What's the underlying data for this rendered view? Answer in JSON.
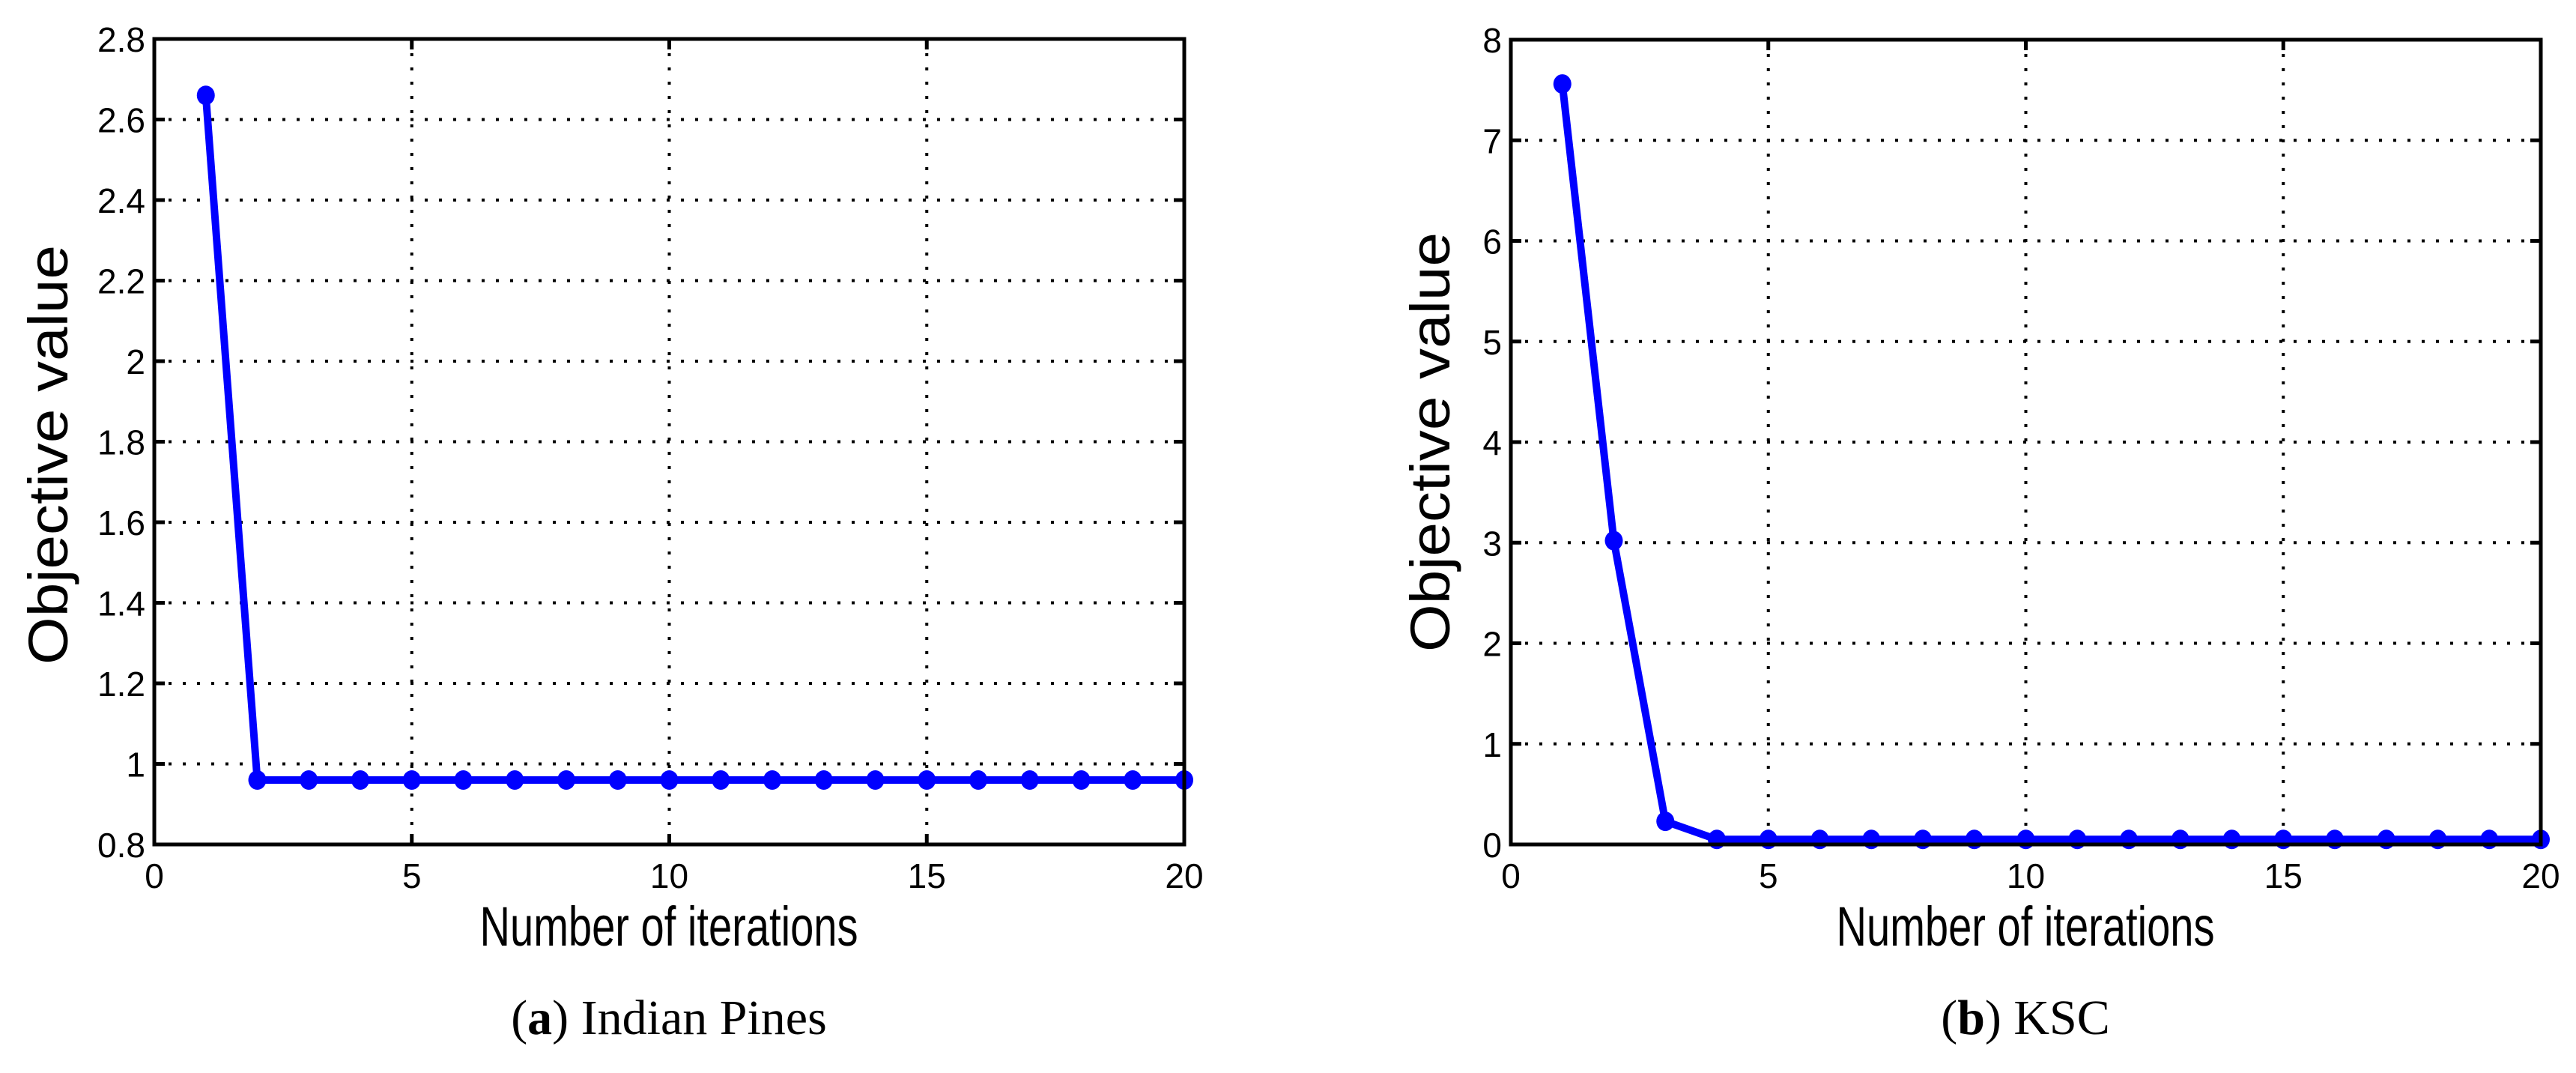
{
  "figure": {
    "panels": [
      {
        "id": "a",
        "caption_letter": "a",
        "caption_text": "Indian Pines",
        "xlabel": "Number of iterations",
        "ylabel": "Objective value"
      },
      {
        "id": "b",
        "caption_letter": "b",
        "caption_text": "KSC",
        "xlabel": "Number of iterations",
        "ylabel": "Objective value"
      }
    ]
  },
  "colors": {
    "series": "#0000ff",
    "axis": "#000000",
    "grid": "#000000",
    "background": "#ffffff"
  },
  "chart_data": [
    {
      "type": "line",
      "title": "(a) Indian Pines",
      "xlabel": "Number of iterations",
      "ylabel": "Objective value",
      "xlim": [
        0,
        20
      ],
      "ylim": [
        0.8,
        2.8
      ],
      "xticks": [
        0,
        5,
        10,
        15,
        20
      ],
      "yticks": [
        0.8,
        1,
        1.2,
        1.4,
        1.6,
        1.8,
        2,
        2.2,
        2.4,
        2.6,
        2.8
      ],
      "ytick_labels": [
        "0.8",
        "1",
        "1.2",
        "1.4",
        "1.6",
        "1.8",
        "2",
        "2.2",
        "2.4",
        "2.6",
        "2.8"
      ],
      "grid": true,
      "legend": null,
      "marker": "filled-circle",
      "x": [
        1,
        2,
        3,
        4,
        5,
        6,
        7,
        8,
        9,
        10,
        11,
        12,
        13,
        14,
        15,
        16,
        17,
        18,
        19,
        20
      ],
      "series": [
        {
          "name": "Objective value",
          "color": "#0000ff",
          "values": [
            2.66,
            0.96,
            0.96,
            0.96,
            0.96,
            0.96,
            0.96,
            0.96,
            0.96,
            0.96,
            0.96,
            0.96,
            0.96,
            0.96,
            0.96,
            0.96,
            0.96,
            0.96,
            0.96,
            0.96
          ]
        }
      ]
    },
    {
      "type": "line",
      "title": "(b) KSC",
      "xlabel": "Number of iterations",
      "ylabel": "Objective value",
      "xlim": [
        0,
        20
      ],
      "ylim": [
        0,
        8
      ],
      "xticks": [
        0,
        5,
        10,
        15,
        20
      ],
      "yticks": [
        0,
        1,
        2,
        3,
        4,
        5,
        6,
        7,
        8
      ],
      "ytick_labels": [
        "0",
        "1",
        "2",
        "3",
        "4",
        "5",
        "6",
        "7",
        "8"
      ],
      "grid": true,
      "legend": null,
      "marker": "filled-circle",
      "x": [
        1,
        2,
        3,
        4,
        5,
        6,
        7,
        8,
        9,
        10,
        11,
        12,
        13,
        14,
        15,
        16,
        17,
        18,
        19,
        20
      ],
      "series": [
        {
          "name": "Objective value",
          "color": "#0000ff",
          "values": [
            7.56,
            3.02,
            0.23,
            0.05,
            0.05,
            0.05,
            0.05,
            0.05,
            0.05,
            0.05,
            0.05,
            0.05,
            0.05,
            0.05,
            0.05,
            0.05,
            0.05,
            0.05,
            0.05,
            0.05
          ]
        }
      ]
    }
  ]
}
